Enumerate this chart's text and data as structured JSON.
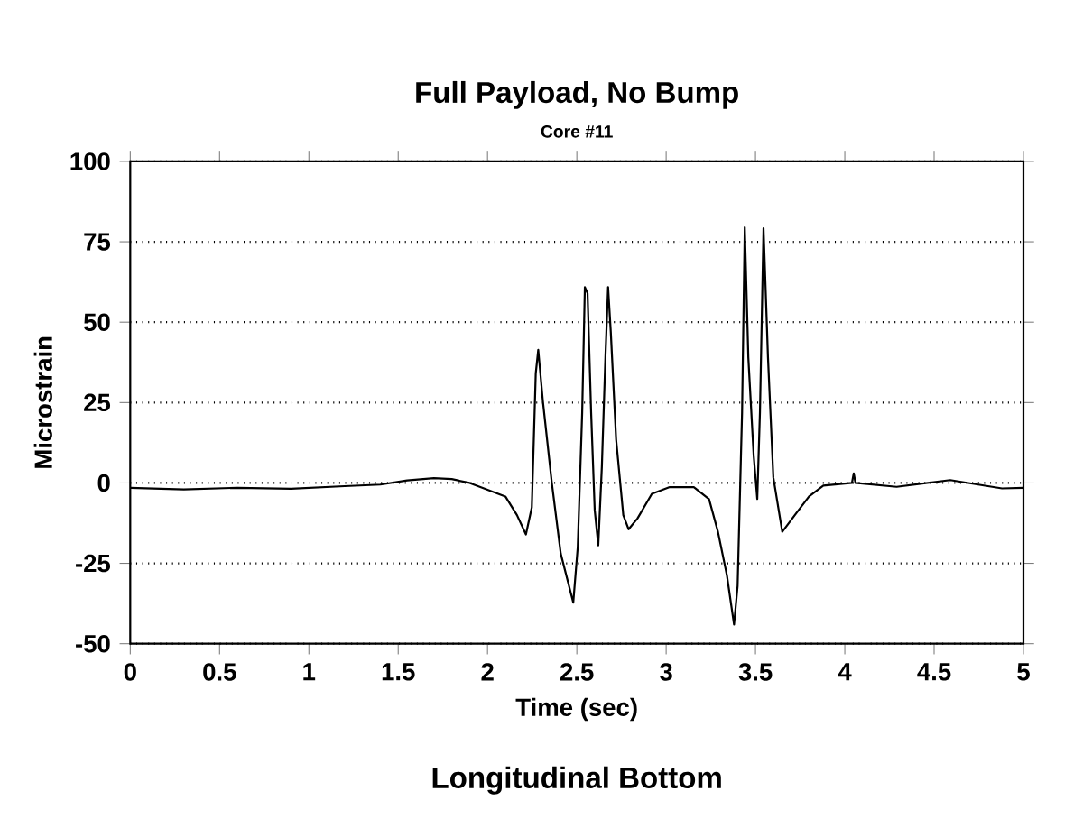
{
  "chart_data": {
    "type": "line",
    "title": "Full Payload, No Bump",
    "subtitle": "Core #11",
    "xlabel": "Time (sec)",
    "ylabel": "Microstrain",
    "annotations": [
      "Longitudinal Bottom"
    ],
    "xlim": [
      0,
      5
    ],
    "ylim": [
      -50,
      100
    ],
    "xticks": [
      0,
      0.5,
      1,
      1.5,
      2,
      2.5,
      3,
      3.5,
      4,
      4.5,
      5
    ],
    "yticks": [
      -50,
      -25,
      0,
      25,
      50,
      75,
      100
    ],
    "grid": "y",
    "marker": "none",
    "line_style": "solid",
    "series": [
      {
        "color": "#000000",
        "x": [
          0,
          0.3,
          0.6,
          0.9,
          1.2,
          1.4,
          1.55,
          1.7,
          1.8,
          1.9,
          2.1,
          2.165,
          2.215,
          2.248,
          2.27,
          2.284,
          2.31,
          2.36,
          2.41,
          2.48,
          2.505,
          2.53,
          2.545,
          2.56,
          2.58,
          2.6,
          2.62,
          2.64,
          2.66,
          2.675,
          2.69,
          2.72,
          2.76,
          2.79,
          2.84,
          2.92,
          3.02,
          3.155,
          3.24,
          3.29,
          3.34,
          3.38,
          3.4,
          3.425,
          3.44,
          3.46,
          3.49,
          3.51,
          3.525,
          3.545,
          3.57,
          3.6,
          3.65,
          3.72,
          3.8,
          3.88,
          4.04,
          4.05,
          4.06,
          4.29,
          4.59,
          4.88,
          5
        ],
        "values": [
          -1.5,
          -2,
          -1.5,
          -1.8,
          -1,
          -0.5,
          0.8,
          1.5,
          1.2,
          0,
          -4.2,
          -10,
          -16,
          -7.6,
          34,
          41.4,
          25.4,
          0,
          -22,
          -37.2,
          -20,
          22,
          60.9,
          59,
          22,
          -8.4,
          -19.4,
          5,
          39,
          60.9,
          47,
          13.5,
          -10,
          -14.4,
          -11,
          -3.4,
          -1.3,
          -1.3,
          -5,
          -15.2,
          -28.7,
          -44,
          -32,
          22,
          79.5,
          39,
          8.5,
          -5,
          22,
          79.2,
          39,
          1.7,
          -15.2,
          -10,
          -4.2,
          -0.8,
          0,
          3,
          0,
          -1.2,
          0.9,
          -1.7,
          -1.5
        ]
      }
    ]
  }
}
